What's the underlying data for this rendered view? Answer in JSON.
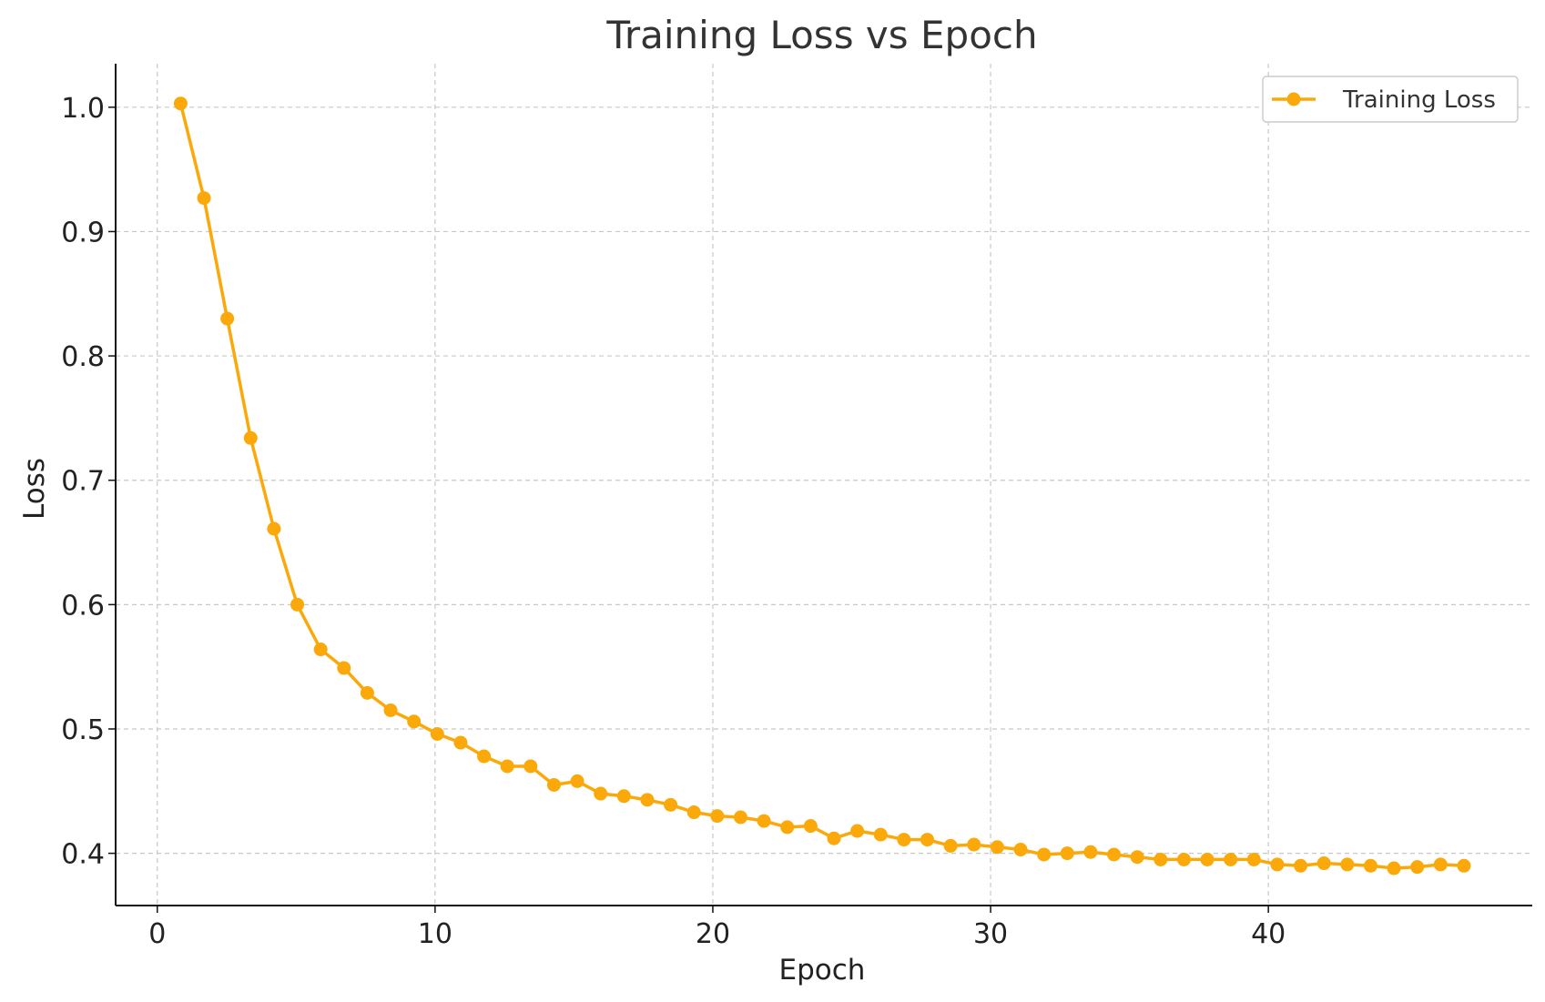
{
  "chart_data": {
    "type": "line",
    "title": "Training Loss vs Epoch",
    "xlabel": "Epoch",
    "ylabel": "Loss",
    "xlim": [
      -1.5,
      49.5
    ],
    "ylim": [
      0.358,
      1.035
    ],
    "x_ticks": [
      0,
      10,
      20,
      30,
      40
    ],
    "x_tick_labels": [
      "0",
      "10",
      "20",
      "30",
      "40"
    ],
    "y_ticks": [
      0.4,
      0.5,
      0.6,
      0.7,
      0.8,
      0.9,
      1.0
    ],
    "y_tick_labels": [
      "0.4",
      "0.5",
      "0.6",
      "0.7",
      "0.8",
      "0.9",
      "1.0"
    ],
    "grid": true,
    "legend_position": "top-right",
    "series": [
      {
        "name": "Training Loss",
        "color": "#FBA90A",
        "marker": "circle",
        "x": [
          0.84,
          1.68,
          2.52,
          3.36,
          4.2,
          5.04,
          5.88,
          6.72,
          7.56,
          8.4,
          9.24,
          10.08,
          10.92,
          11.76,
          12.6,
          13.44,
          14.28,
          15.12,
          15.96,
          16.8,
          17.64,
          18.48,
          19.32,
          20.16,
          21.0,
          21.84,
          22.68,
          23.52,
          24.36,
          25.2,
          26.04,
          26.88,
          27.72,
          28.56,
          29.4,
          30.24,
          31.08,
          31.92,
          32.76,
          33.6,
          34.44,
          35.28,
          36.12,
          36.96,
          37.8,
          38.64,
          39.48,
          40.32,
          41.16,
          42.0,
          42.84,
          43.68,
          44.52,
          45.36,
          46.2,
          47.04
        ],
        "y": [
          1.003,
          0.927,
          0.83,
          0.734,
          0.661,
          0.6,
          0.564,
          0.549,
          0.529,
          0.515,
          0.506,
          0.496,
          0.489,
          0.478,
          0.47,
          0.47,
          0.455,
          0.458,
          0.448,
          0.446,
          0.443,
          0.439,
          0.433,
          0.43,
          0.429,
          0.426,
          0.421,
          0.422,
          0.412,
          0.418,
          0.415,
          0.411,
          0.411,
          0.406,
          0.407,
          0.405,
          0.403,
          0.399,
          0.4,
          0.401,
          0.399,
          0.397,
          0.395,
          0.395,
          0.395,
          0.395,
          0.395,
          0.391,
          0.39,
          0.392,
          0.391,
          0.39,
          0.388,
          0.389,
          0.391,
          0.39
        ]
      }
    ]
  }
}
